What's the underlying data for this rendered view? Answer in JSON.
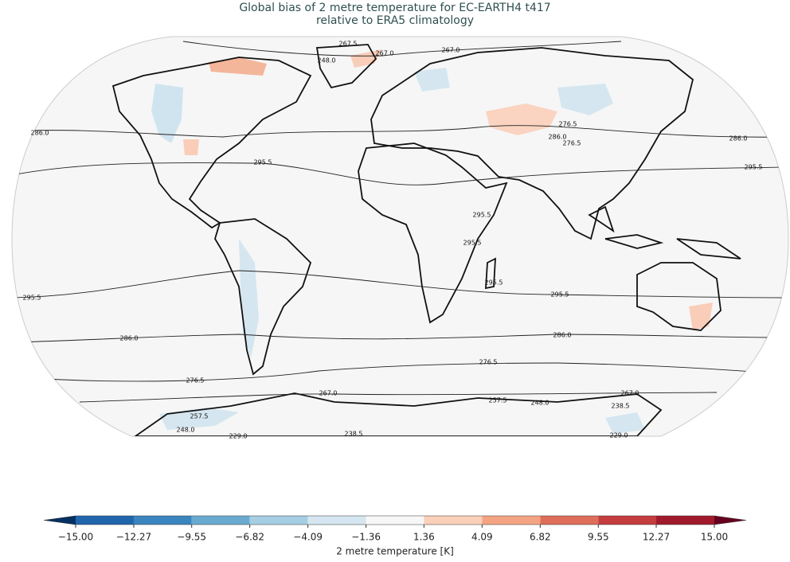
{
  "header": {
    "title_lines": [
      "Global bias of 2 metre temperature for EC-EARTH4 t417",
      "relative to ERA5 climatology"
    ]
  },
  "map": {
    "contour_labels": [
      "267.5",
      "267.0",
      "267.0",
      "248.0",
      "286.0",
      "286.0",
      "295.5",
      "295.5",
      "276.5",
      "286.0",
      "276.5",
      "295.5",
      "295.5",
      "295.5",
      "295.5",
      "295.5",
      "286.0",
      "286.0",
      "276.5",
      "276.5",
      "267.0",
      "267.0",
      "257.5",
      "248.0",
      "238.5",
      "257.5",
      "248.0",
      "229.0",
      "238.5",
      "229.0"
    ]
  },
  "colorbar": {
    "label": "2 metre temperature [K]",
    "ticks": [
      {
        "value": -15,
        "label": "−15.00"
      },
      {
        "value": -12.27,
        "label": "−12.27"
      },
      {
        "value": -9.55,
        "label": "−9.55"
      },
      {
        "value": -6.82,
        "label": "−6.82"
      },
      {
        "value": -4.09,
        "label": "−4.09"
      },
      {
        "value": -1.36,
        "label": "−1.36"
      },
      {
        "value": 1.36,
        "label": "1.36"
      },
      {
        "value": 4.09,
        "label": "4.09"
      },
      {
        "value": 6.82,
        "label": "6.82"
      },
      {
        "value": 9.55,
        "label": "9.55"
      },
      {
        "value": 12.27,
        "label": "12.27"
      },
      {
        "value": 15,
        "label": "15.00"
      }
    ],
    "colors": [
      "#2166ac",
      "#3a85bf",
      "#6aaad0",
      "#a6cee3",
      "#d5e6f0",
      "#f7f7f7",
      "#fbd0b9",
      "#f4a482",
      "#de6e5a",
      "#c53d3f",
      "#a01a2c"
    ],
    "extend_colors": [
      "#053061",
      "#67001f"
    ]
  }
}
